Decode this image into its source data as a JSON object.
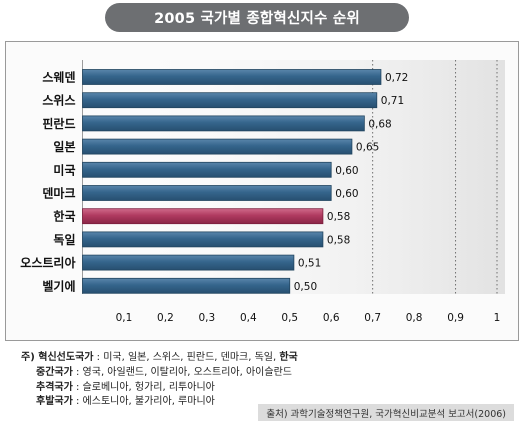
{
  "chart_data": {
    "type": "bar",
    "orientation": "horizontal",
    "title": "2005 국가별 종합혁신지수 순위",
    "categories": [
      "스웨덴",
      "스위스",
      "핀란드",
      "일본",
      "미국",
      "덴마크",
      "한국",
      "독일",
      "오스트리아",
      "벨기에"
    ],
    "values": [
      0.72,
      0.71,
      0.68,
      0.65,
      0.6,
      0.6,
      0.58,
      0.58,
      0.51,
      0.5
    ],
    "value_labels": [
      "0,72",
      "0,71",
      "0,68",
      "0,65",
      "0,60",
      "0,60",
      "0,58",
      "0,58",
      "0,51",
      "0,50"
    ],
    "highlight_category": "한국",
    "x_ticks": [
      "0,1",
      "0,2",
      "0,3",
      "0,4",
      "0,5",
      "0,6",
      "0,7",
      "0,8",
      "0,9",
      "1"
    ],
    "xlim": [
      0,
      1
    ],
    "grid": "vertical dotted lines at 0.7, 0.9, 1",
    "xlabel": "",
    "ylabel": "",
    "colors": {
      "bar": "#35658c",
      "bar_highlight": "#b03a60",
      "title_bg": "#6d6f72"
    }
  },
  "notes": {
    "prefix": "주)",
    "rows": [
      {
        "label": "혁신선도국가",
        "sep": " : ",
        "items": "미국, 일본, 스위스, 핀란드, 덴마크, 독일, ",
        "emphasis": "한국"
      },
      {
        "label": "중간국가",
        "sep": " : ",
        "items": "영국, 아일랜드, 이탈리아, 오스트리아, 아이슬란드",
        "emphasis": ""
      },
      {
        "label": "추격국가",
        "sep": " : ",
        "items": "슬로베니아, 헝가리, 리투아니아",
        "emphasis": ""
      },
      {
        "label": "후발국가",
        "sep": " : ",
        "items": "에스토니아, 불가리아, 루마니아",
        "emphasis": ""
      }
    ]
  },
  "source": "출처) 과학기술정책연구원, 국가혁신비교분석 보고서(2006)"
}
